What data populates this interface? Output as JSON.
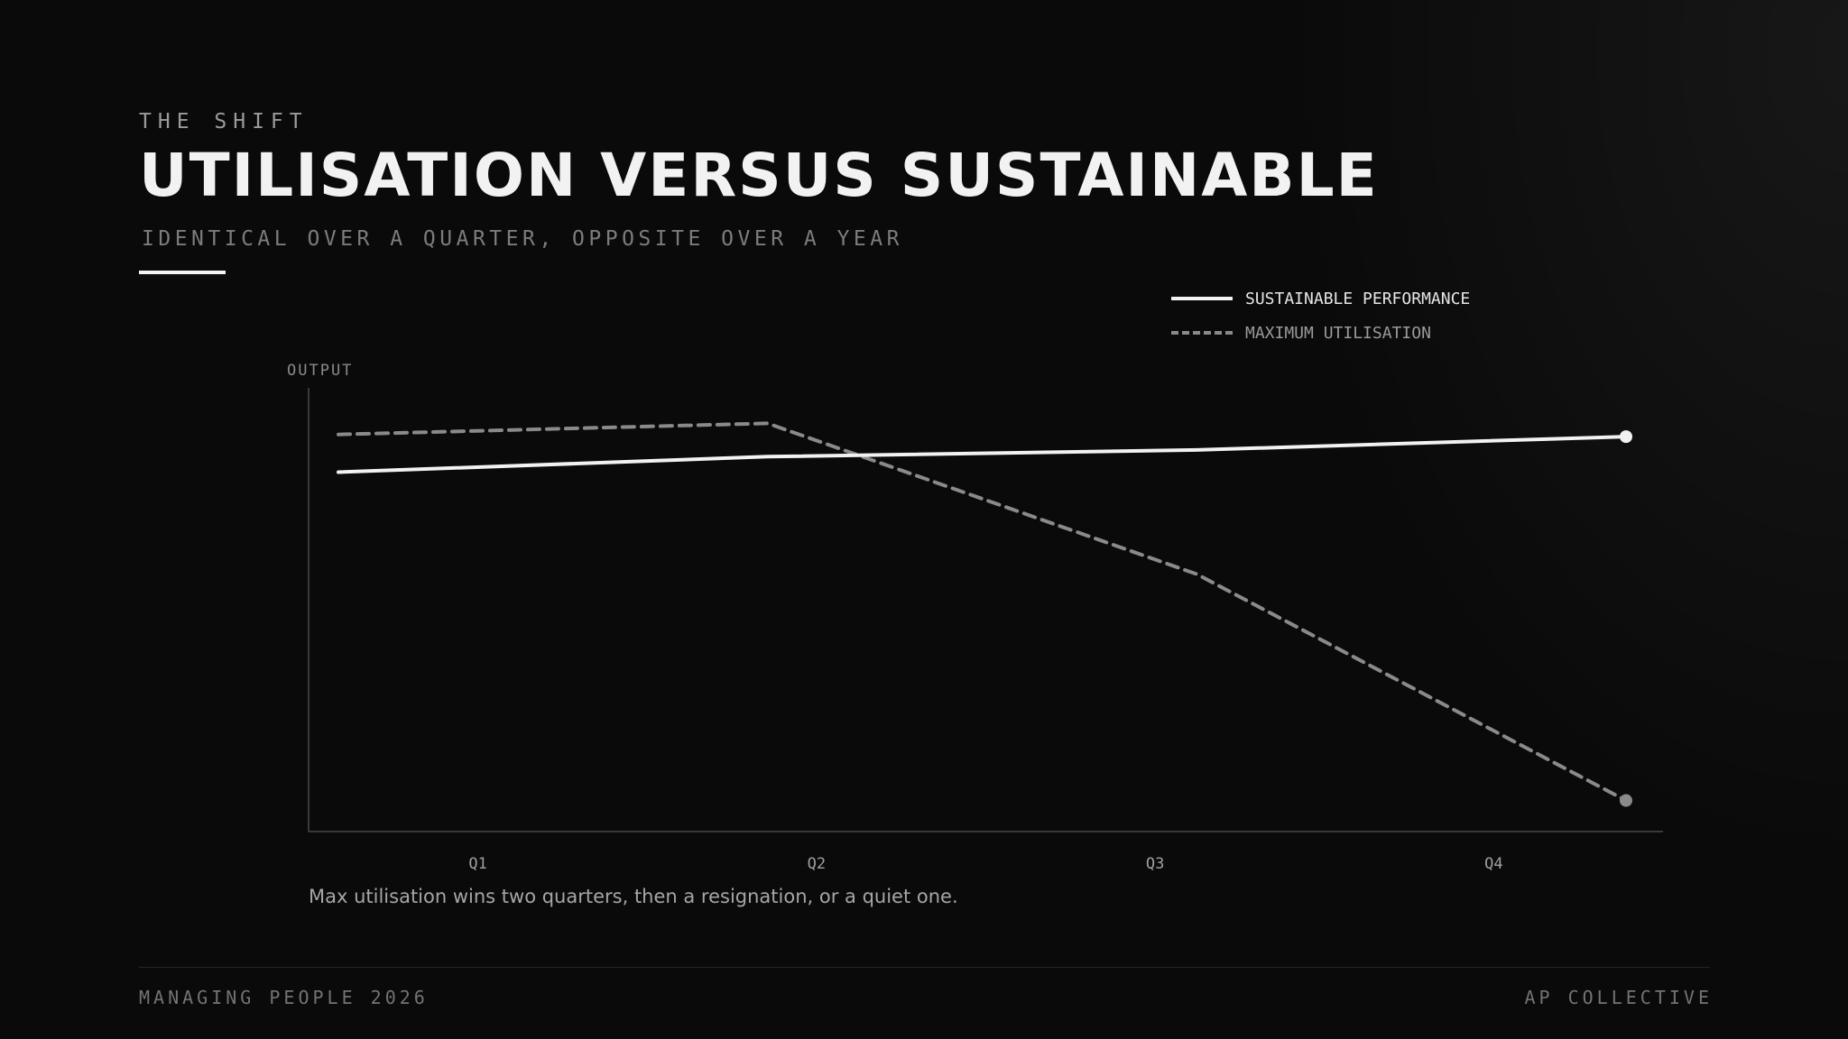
{
  "header": {
    "eyebrow": "THE SHIFT",
    "title": "UTILISATION VERSUS SUSTAINABLE",
    "subtitle": "IDENTICAL OVER A QUARTER, OPPOSITE OVER A YEAR"
  },
  "colors": {
    "background": "#0a0a0a",
    "sustainable": "#f2f2f2",
    "utilisation": "#8a8a8a",
    "axis": "#3a3a3a"
  },
  "chart_data": {
    "type": "line",
    "title": "UTILISATION VERSUS SUSTAINABLE",
    "ylabel": "OUTPUT",
    "xlabel": "",
    "categories": [
      "Q1",
      "Q2",
      "Q3",
      "Q4"
    ],
    "ylim": [
      0,
      100
    ],
    "grid": false,
    "legend_position": "top-right",
    "series": [
      {
        "name": "SUSTAINABLE PERFORMANCE",
        "style": "solid",
        "color": "#f2f2f2",
        "values": [
          81,
          84.5,
          86,
          89
        ]
      },
      {
        "name": "MAXIMUM UTILISATION",
        "style": "dashed",
        "color": "#8a8a8a",
        "values": [
          89.5,
          92,
          58,
          7
        ]
      }
    ]
  },
  "note": "Max utilisation wins two quarters, then a resignation, or a quiet one.",
  "footer": {
    "left": "MANAGING PEOPLE 2026",
    "right": "AP COLLECTIVE"
  }
}
